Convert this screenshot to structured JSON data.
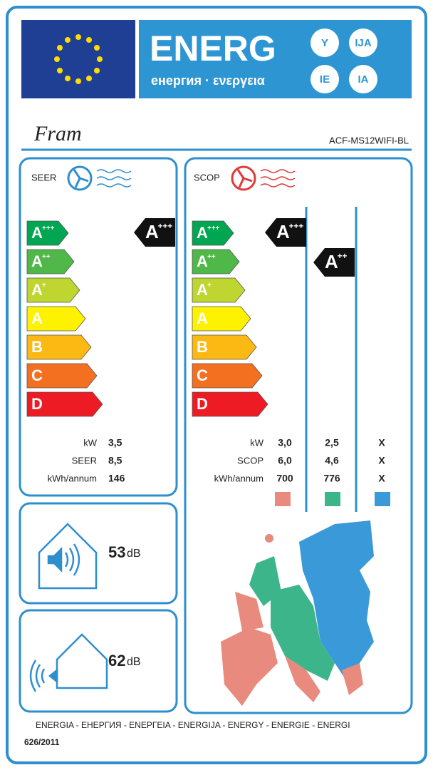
{
  "header": {
    "title": "ENERG",
    "subtitle": "енергия · ενεργεια",
    "suffixes": [
      "Y",
      "IJA",
      "IE",
      "IA"
    ]
  },
  "brand": "Fram",
  "model": "ACF-MS12WIFI-BL",
  "classes": [
    {
      "letter": "A",
      "sup": "+++"
    },
    {
      "letter": "A",
      "sup": "++"
    },
    {
      "letter": "A",
      "sup": "+"
    },
    {
      "letter": "A"
    },
    {
      "letter": "B"
    },
    {
      "letter": "C"
    },
    {
      "letter": "D"
    }
  ],
  "seer": {
    "label": "SEER",
    "rating": {
      "letter": "A",
      "sup": "+++"
    },
    "rows": [
      {
        "label": "kW",
        "value": "3,5"
      },
      {
        "label": "SEER",
        "value": "8,5"
      },
      {
        "label": "kWh/annum",
        "value": "146"
      }
    ]
  },
  "scop": {
    "label": "SCOP",
    "ratings": [
      {
        "letter": "A",
        "sup": "+++"
      },
      {
        "letter": "A",
        "sup": "++"
      }
    ],
    "rows": [
      {
        "label": "kW",
        "values": [
          "3,0",
          "2,5",
          "X"
        ]
      },
      {
        "label": "SCOP",
        "values": [
          "6,0",
          "4,6",
          "X"
        ]
      },
      {
        "label": "kWh/annum",
        "values": [
          "700",
          "776",
          "X"
        ]
      }
    ]
  },
  "noise": [
    {
      "value": "53",
      "unit": "dB"
    },
    {
      "value": "62",
      "unit": "dB"
    }
  ],
  "footer": {
    "languages": "ENERGIA - ЕНЕРГИЯ - ΕΝΕΡΓΕΙΑ - ENERGIJA - ENERGY - ENERGIE - ENERGI",
    "regulation": "626/2011"
  }
}
